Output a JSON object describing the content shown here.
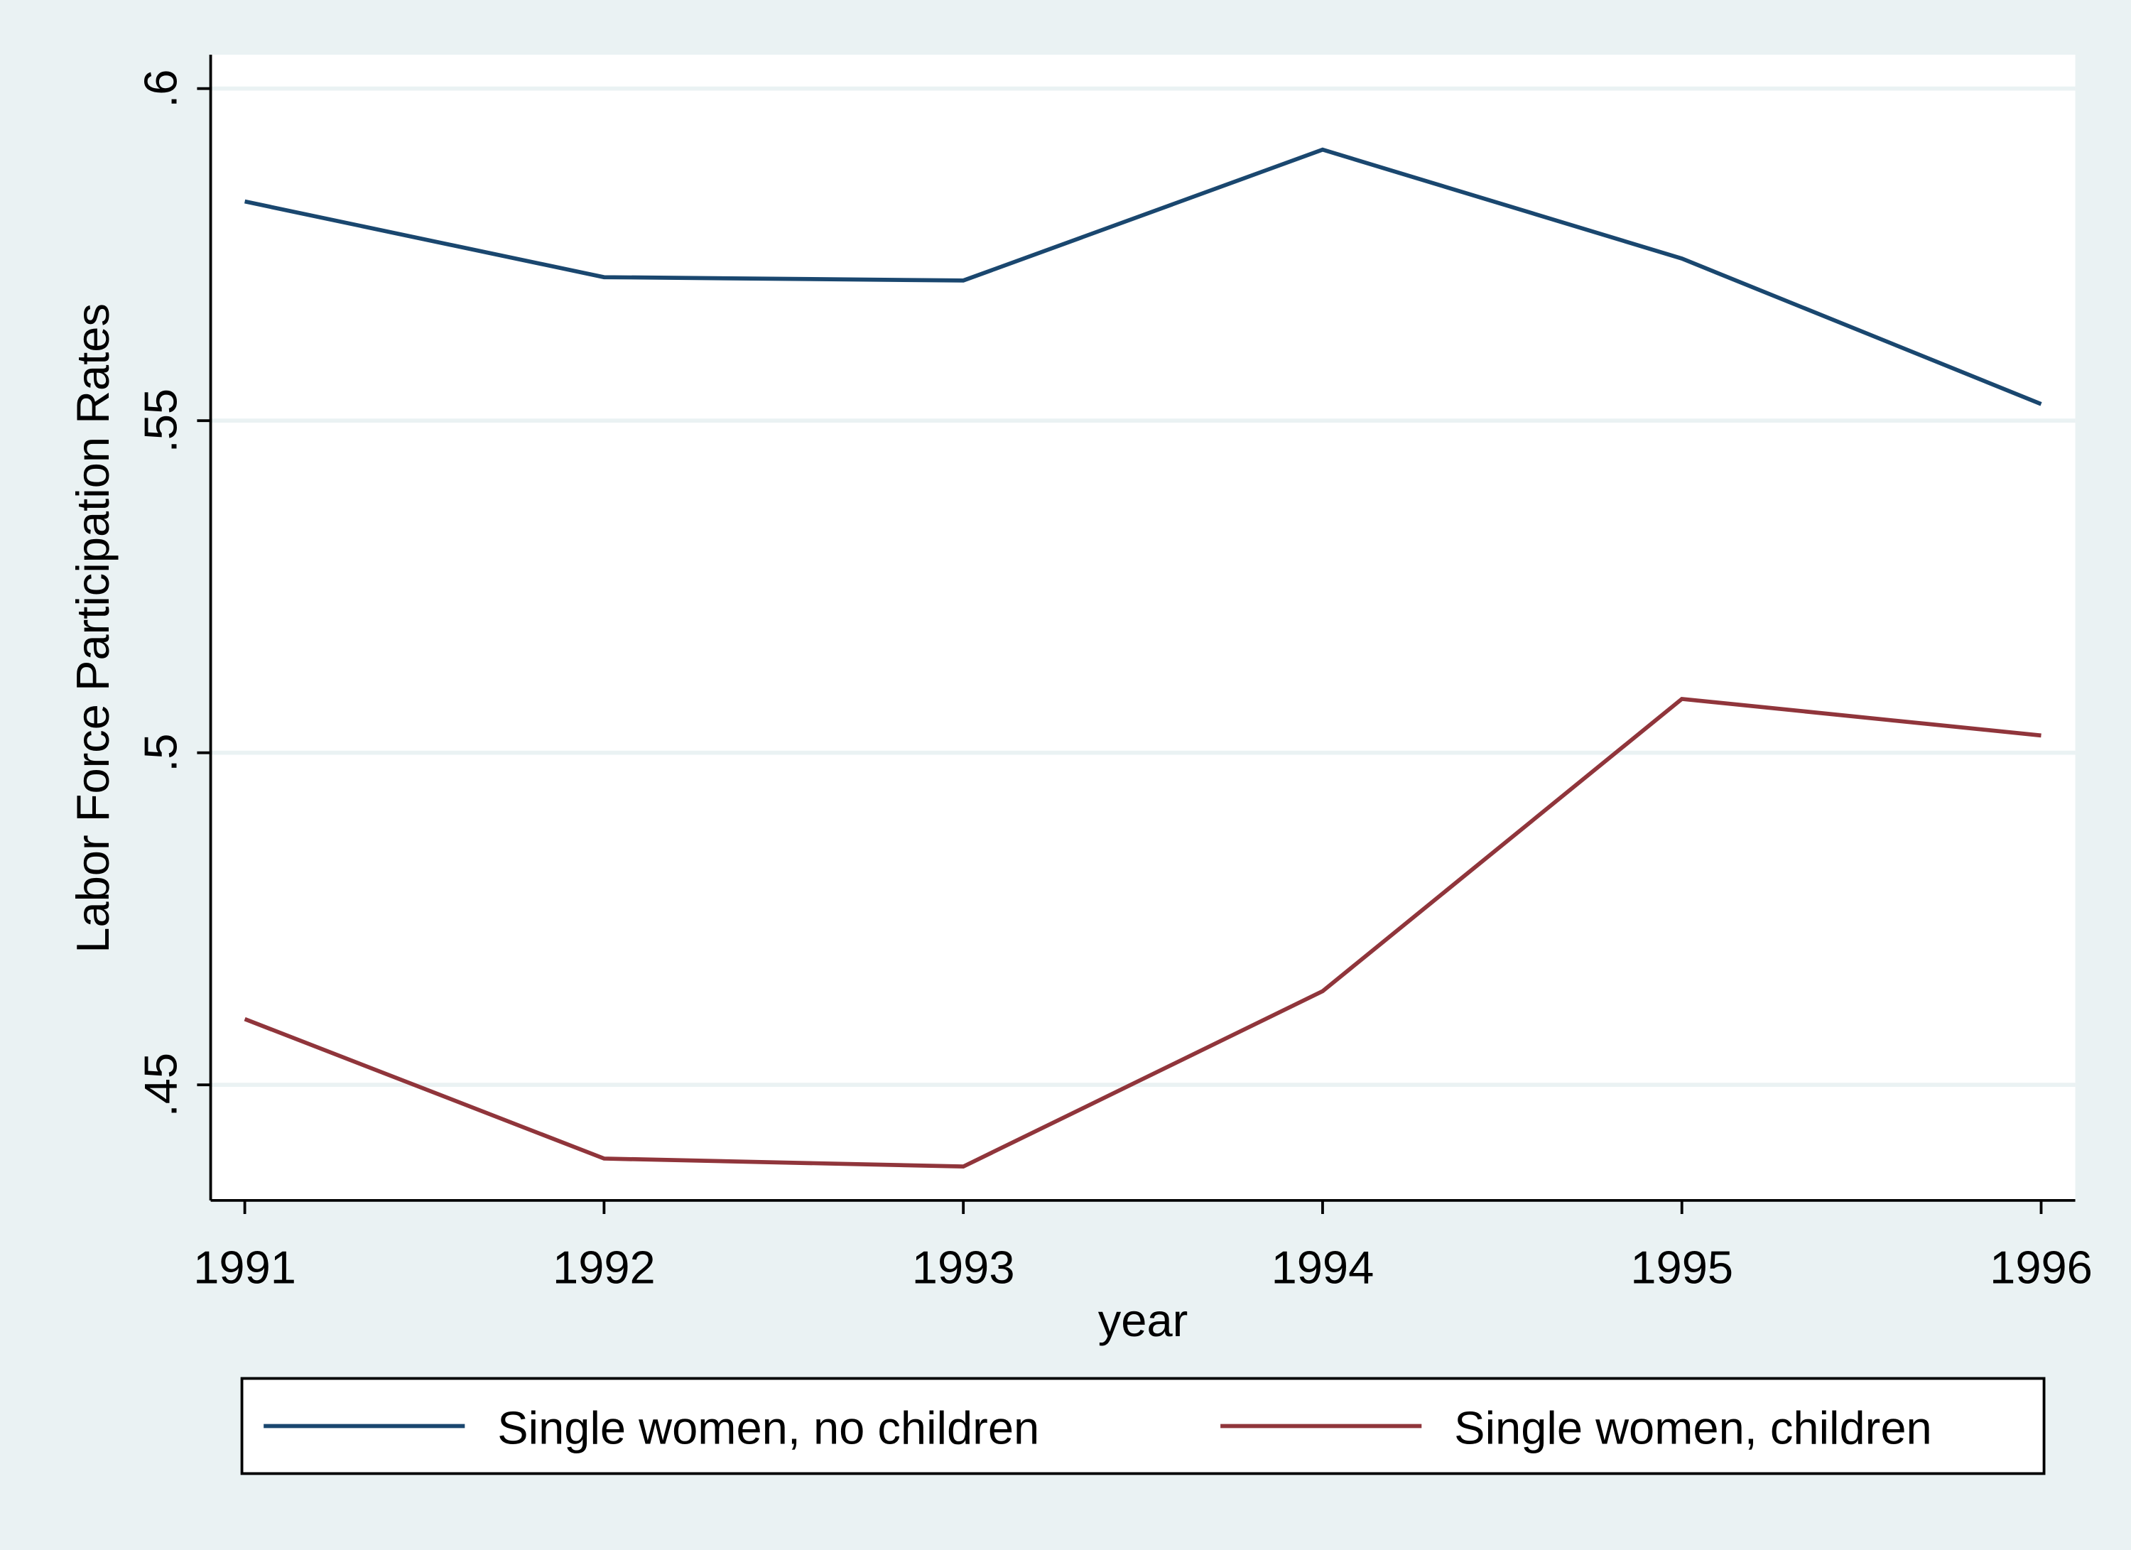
{
  "chart_data": {
    "type": "line",
    "x_label": "year",
    "y_label": "Labor Force Participation Rates",
    "x": [
      1991,
      1992,
      1993,
      1994,
      1995,
      1996
    ],
    "series": [
      {
        "name": "Single women, no children",
        "color": "#1a476f",
        "values": [
          0.583,
          0.5716,
          0.5711,
          0.5908,
          0.5744,
          0.5525
        ]
      },
      {
        "name": "Single women, children",
        "color": "#90353b",
        "values": [
          0.4599,
          0.4389,
          0.4377,
          0.4641,
          0.5081,
          0.5026
        ]
      }
    ],
    "xlim": [
      1990.905,
      1996.095
    ],
    "xticks": [
      1991,
      1992,
      1993,
      1994,
      1995,
      1996
    ],
    "ylim": [
      0.4326,
      0.6051
    ],
    "yticks": [
      {
        "value": 0.45,
        "label": ".45"
      },
      {
        "value": 0.5,
        "label": ".5"
      },
      {
        "value": 0.55,
        "label": ".55"
      },
      {
        "value": 0.6,
        "label": ".6"
      }
    ],
    "grid": true,
    "legend": "bottom"
  }
}
